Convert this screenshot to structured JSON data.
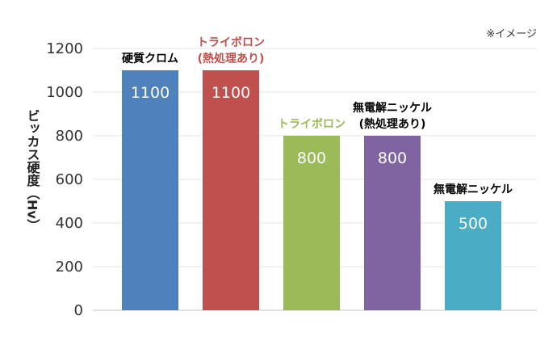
{
  "note": "※イメージ",
  "chart_data": {
    "type": "bar",
    "title": "",
    "xlabel": "",
    "ylabel": "ビッカス硬度（Hv）",
    "ylim": [
      0,
      1200
    ],
    "yticks": [
      0,
      200,
      400,
      600,
      800,
      1000,
      1200
    ],
    "grid": true,
    "categories": [
      {
        "lines": [
          "硬質クロム"
        ],
        "color": "#000000"
      },
      {
        "lines": [
          "トライボロン",
          "(熱処理あり)"
        ],
        "color": "#c0504d"
      },
      {
        "lines": [
          "トライボロン"
        ],
        "color": "#9bbb59"
      },
      {
        "lines": [
          "無電解ニッケル",
          "(熱処理あり)"
        ],
        "color": "#000000"
      },
      {
        "lines": [
          "無電解ニッケル"
        ],
        "color": "#000000"
      }
    ],
    "values": [
      1100,
      1100,
      800,
      800,
      500
    ],
    "value_labels": [
      "1100",
      "1100",
      "800",
      "800",
      "500"
    ],
    "bar_colors": [
      "#4f81bd",
      "#c0504d",
      "#9bbb59",
      "#8064a2",
      "#4bacc6"
    ]
  }
}
